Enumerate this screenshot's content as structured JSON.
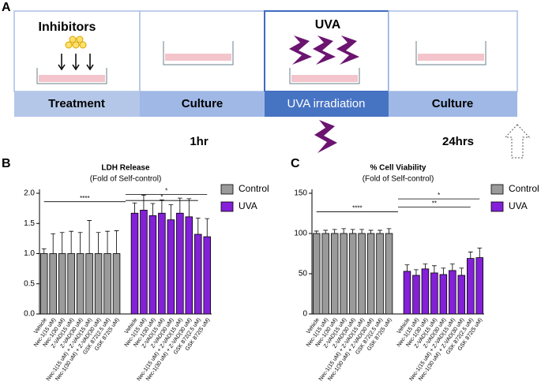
{
  "diagram": {
    "panel_label": "A",
    "inhibitors": "Inhibitors",
    "uva": "UVA",
    "steps": [
      "Treatment",
      "Culture",
      "UVA irradiation",
      "Culture"
    ],
    "times": [
      "1hr",
      "24hrs"
    ]
  },
  "chart_data": [
    {
      "type": "bar",
      "panel_label": "B",
      "title": "LDH Release",
      "subtitle": "(Fold of Self-control)",
      "categories": [
        "Vehicle",
        "Nec-1(15 uM)",
        "Nec-1(30 uM)",
        "Z-VAD(15 uM)",
        "Z-VAD(30 uM)",
        "Nec-1(15 uM) + Z-VAD(15 uM)",
        "Nec-1(30 uM) + Z-VAD(30 uM)",
        "GSK 872(2.5 uM)",
        "GSK 872(5 uM)",
        "Vehicle",
        "Nec-1(15 uM)",
        "Nec-1(30 uM)",
        "Z-VAD(15 uM)",
        "Z-VAD(30 uM)",
        "Nec-1(15 uM) + Z-VAD(15 uM)",
        "Nec-1(30 uM) + Z-VAD(30 uM)",
        "GSK 872(2.5 uM)",
        "GSK 872(5 uM)"
      ],
      "series": [
        {
          "name": "Control",
          "color": "#9a9a9a",
          "values": [
            1.0,
            1.0,
            1.0,
            1.0,
            1.0,
            1.0,
            1.0,
            1.0,
            1.0,
            null,
            null,
            null,
            null,
            null,
            null,
            null,
            null,
            null
          ],
          "errors": [
            0.08,
            0.33,
            0.35,
            0.37,
            0.35,
            0.55,
            0.35,
            0.37,
            0.38,
            null,
            null,
            null,
            null,
            null,
            null,
            null,
            null,
            null
          ]
        },
        {
          "name": "UVA",
          "color": "#8420d8",
          "values": [
            null,
            null,
            null,
            null,
            null,
            null,
            null,
            null,
            null,
            1.67,
            1.72,
            1.63,
            1.67,
            1.56,
            1.67,
            1.61,
            1.32,
            1.28
          ],
          "errors": [
            null,
            null,
            null,
            null,
            null,
            null,
            null,
            null,
            null,
            0.17,
            0.25,
            0.2,
            0.22,
            0.25,
            0.25,
            0.3,
            0.27,
            0.3
          ]
        }
      ],
      "ylim": [
        0,
        2.0
      ],
      "yticks": [
        {
          "value": 0,
          "label": "0.0"
        },
        {
          "value": 0.5,
          "label": "0.5"
        },
        {
          "value": 1,
          "label": "1.0"
        },
        {
          "value": 1.5,
          "label": "1.5"
        },
        {
          "value": 2,
          "label": "2.0"
        }
      ],
      "annotations": [
        "****",
        "*",
        "*"
      ]
    },
    {
      "type": "bar",
      "panel_label": "C",
      "title": "% Cell Viability",
      "subtitle": "(Fold of Self-control)",
      "categories": [
        "Vehicle",
        "Nec-1(15 uM)",
        "Nec-1(30 uM)",
        "Z-VAD(15 uM)",
        "Z-VAD(30 uM)",
        "Nec-1(15 uM) + Z-VAD(15 uM)",
        "Nec-1(30 uM) + Z-VAD(30 uM)",
        "GSK 872(2.5 uM)",
        "GSK 872(5 uM)",
        "Vehicle",
        "Nec-1(15 uM)",
        "Nec-1(30 uM)",
        "Z-VAD(15 uM)",
        "Z-VAD(30 uM)",
        "Nec-1(15 uM) + Z-VAD(15 uM)",
        "Nec-1(30 uM) + Z-VAD(30 uM)",
        "GSK 872(2.5 uM)",
        "GSK 872(5 uM)"
      ],
      "series": [
        {
          "name": "Control",
          "color": "#9a9a9a",
          "values": [
            100,
            100,
            100,
            100,
            100,
            100,
            100,
            100,
            100,
            null,
            null,
            null,
            null,
            null,
            null,
            null,
            null,
            null
          ],
          "errors": [
            3,
            4,
            5,
            6,
            5,
            5,
            4,
            4,
            6,
            null,
            null,
            null,
            null,
            null,
            null,
            null,
            null,
            null
          ]
        },
        {
          "name": "UVA",
          "color": "#8420d8",
          "values": [
            null,
            null,
            null,
            null,
            null,
            null,
            null,
            null,
            null,
            53,
            48,
            56,
            51,
            49,
            54,
            48,
            69,
            70
          ],
          "errors": [
            null,
            null,
            null,
            null,
            null,
            null,
            null,
            null,
            null,
            8,
            7,
            6,
            9,
            8,
            8,
            9,
            8,
            12
          ]
        }
      ],
      "ylim": [
        0,
        150
      ],
      "yticks": [
        0,
        50,
        100,
        150
      ],
      "annotations": [
        "****",
        "*",
        "**"
      ]
    }
  ]
}
